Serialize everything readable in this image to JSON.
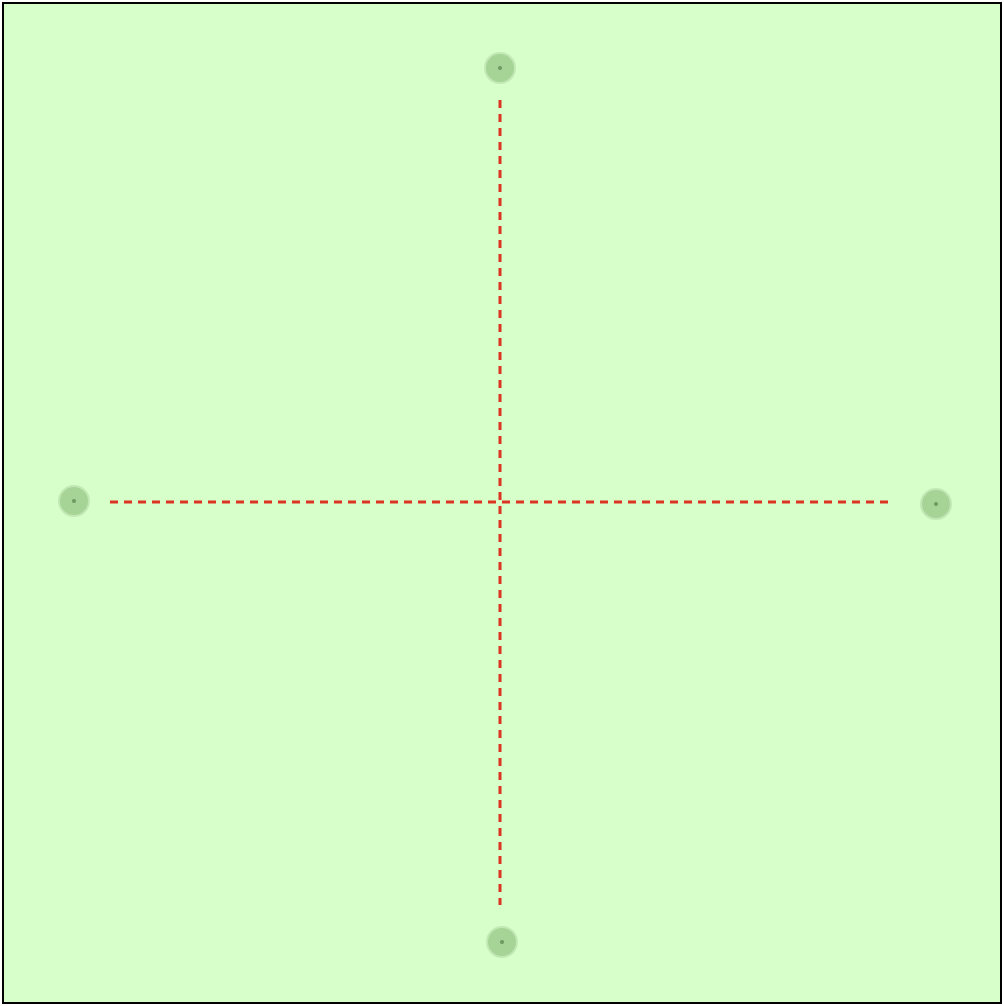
{
  "colors": {
    "background": "#d6ffca",
    "border": "#000000",
    "guide_line": "#dd3322",
    "node_fill": "#a6d497",
    "node_ring": "#c2e9b4",
    "node_dot": "#6f9c61"
  },
  "nodes": [
    {
      "id": "top",
      "icon": "circle-handle-icon"
    },
    {
      "id": "left",
      "icon": "circle-handle-icon"
    },
    {
      "id": "right",
      "icon": "circle-handle-icon"
    },
    {
      "id": "bottom",
      "icon": "circle-handle-icon"
    }
  ]
}
